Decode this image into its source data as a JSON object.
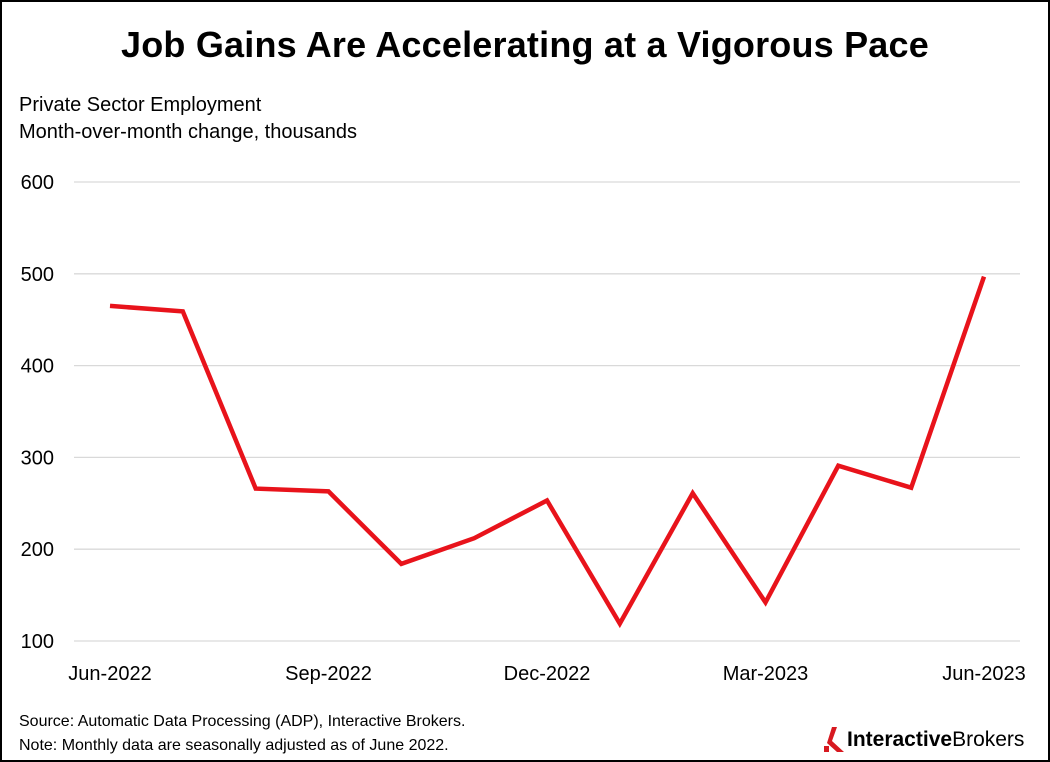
{
  "title": "Job Gains Are Accelerating at a Vigorous Pace",
  "subtitle_lines": [
    "Private Sector Employment",
    "Month-over-month change, thousands"
  ],
  "footnotes": [
    "Source: Automatic Data Processing (ADP), Interactive Brokers.",
    "Note: Monthly data are seasonally adjusted as of June 2022."
  ],
  "logo": {
    "part1": "Interactive",
    "part2": "Brokers",
    "icon": "interactive-brokers-logo-icon"
  },
  "colors": {
    "line": "#e8131b",
    "grid": "#d9d9d9",
    "logo_red": "#d71920"
  },
  "chart_data": {
    "type": "line",
    "x": [
      "Jun-2022",
      "Jul-2022",
      "Aug-2022",
      "Sep-2022",
      "Oct-2022",
      "Nov-2022",
      "Dec-2022",
      "Jan-2023",
      "Feb-2023",
      "Mar-2023",
      "Apr-2023",
      "May-2023",
      "Jun-2023"
    ],
    "series": [
      {
        "values": [
          465,
          459,
          266,
          263,
          184,
          212,
          253,
          119,
          261,
          142,
          291,
          267,
          497
        ]
      }
    ],
    "ylim": [
      100,
      600
    ],
    "yticks": [
      100,
      200,
      300,
      400,
      500,
      600
    ],
    "xtick_labels": [
      "Jun-2022",
      "Sep-2022",
      "Dec-2022",
      "Mar-2023",
      "Jun-2023"
    ],
    "xtick_index": [
      0,
      3,
      6,
      9,
      12
    ],
    "grid": true,
    "legend": "none"
  }
}
